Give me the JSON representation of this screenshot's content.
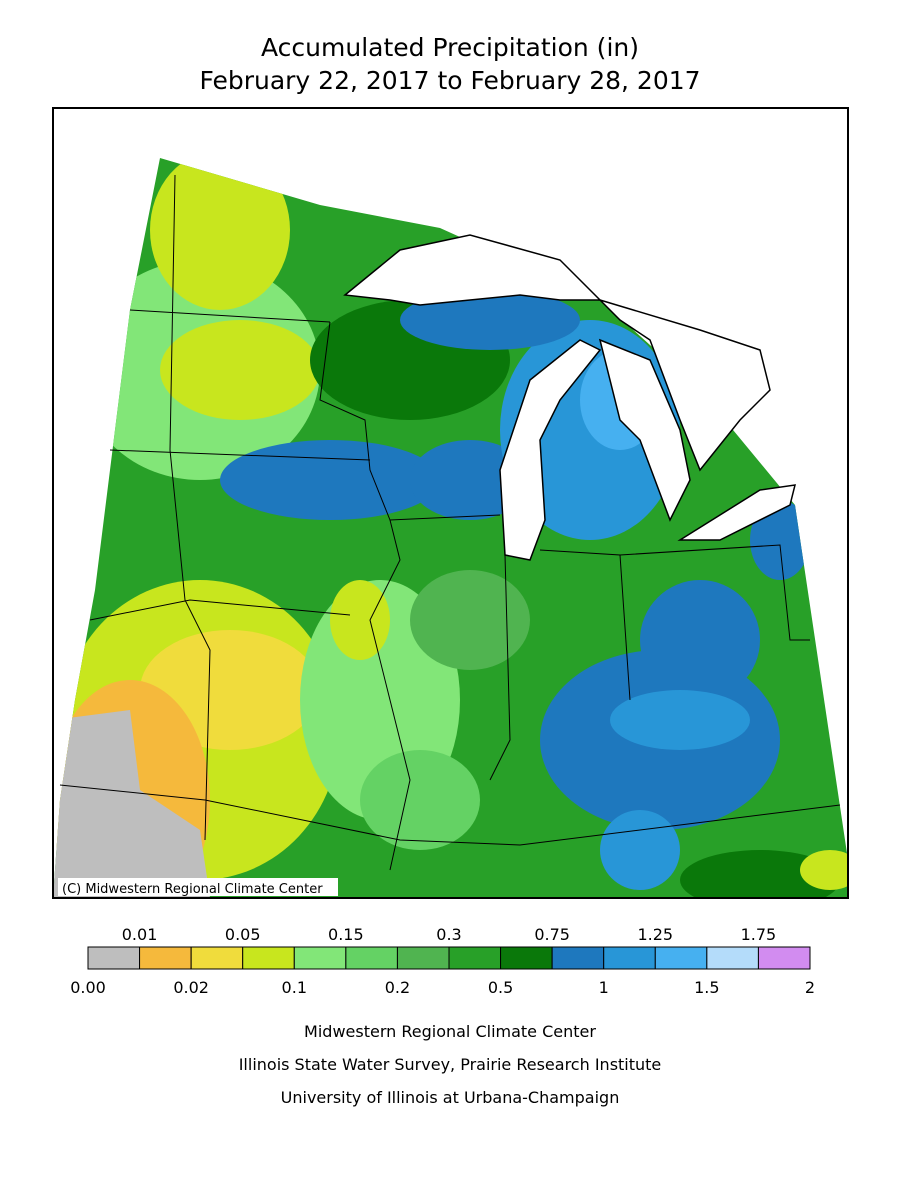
{
  "title": [
    "Accumulated Precipitation (in)",
    "February 22, 2017 to February 28, 2017"
  ],
  "map": {
    "credit": "(C) Midwestern Regional Climate Center"
  },
  "legend": {
    "breaks": [
      "0.00",
      "0.01",
      "0.02",
      "0.05",
      "0.1",
      "0.15",
      "0.2",
      "0.3",
      "0.5",
      "0.75",
      "1",
      "1.25",
      "1.5",
      "1.75",
      "2"
    ],
    "colors": [
      "#bebebe",
      "#f5b93c",
      "#f0dc3c",
      "#c8e61e",
      "#82e678",
      "#64d264",
      "#50b450",
      "#28a028",
      "#0a780a",
      "#1e78be",
      "#2896d7",
      "#46b0f0",
      "#b4dcfa",
      "#d28cf0"
    ]
  },
  "footer": [
    "Midwestern Regional Climate Center",
    "Illinois State Water Survey, Prairie Research Institute",
    "University of Illinois at Urbana-Champaign"
  ]
}
